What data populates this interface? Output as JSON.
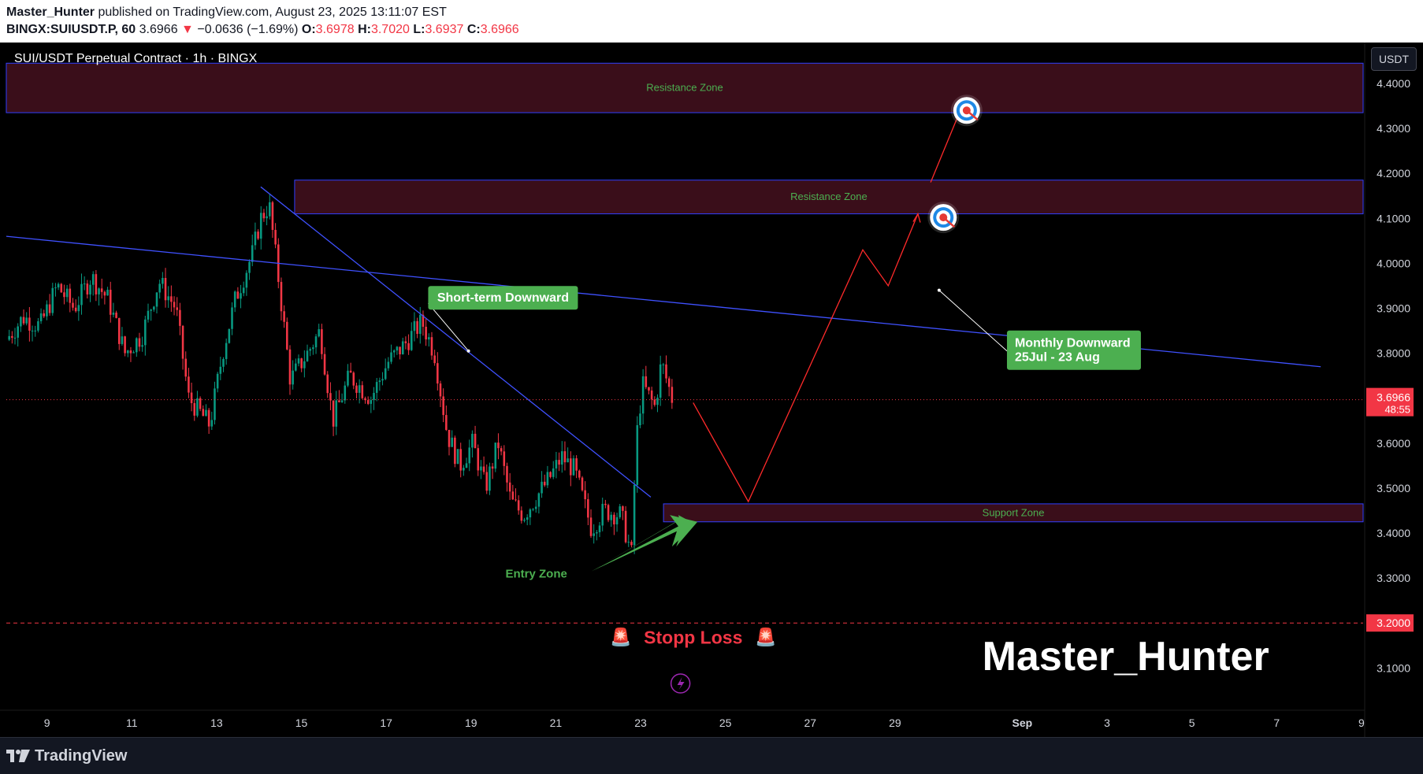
{
  "header": {
    "author": "Master_Hunter",
    "published_text": " published on TradingView.com, August 23, 2025 13:11:07 EST",
    "symbol": "BINGX:SUIUSDT.P, 60",
    "last": "3.6966",
    "change": "−0.0636 (−1.69%)",
    "open_label": "O:",
    "open": "3.6978",
    "high_label": "H:",
    "high": "3.7020",
    "low_label": "L:",
    "low": "3.6937",
    "close_label": "C:",
    "close": "3.6966"
  },
  "chart_title": "SUI/USDT Perpetual Contract · 1h · BINGX",
  "currency_button": "USDT",
  "footer": {
    "brand": "TradingView"
  },
  "colors": {
    "background": "#000000",
    "zone_fill": "#3a0e1a",
    "zone_border": "#2f3fff",
    "up_candle": "#089981",
    "down_candle": "#f23645",
    "trendline": "#3f51ff",
    "projection": "#ff2a2a",
    "label_green": "#4caf50",
    "zone_text": "#4caf50"
  },
  "chart_data": {
    "type": "candlestick",
    "x_axis": {
      "tick_labels": [
        "9",
        "11",
        "13",
        "15",
        "17",
        "19",
        "21",
        "23",
        "25",
        "27",
        "29",
        "Sep",
        "3",
        "5",
        "7",
        "9"
      ]
    },
    "y_axis": {
      "ylim": [
        3.02,
        4.47
      ],
      "tick_labels": [
        "4.4000",
        "4.3000",
        "4.2000",
        "4.1000",
        "4.0000",
        "3.9000",
        "3.8000",
        "3.7000",
        "3.6000",
        "3.5000",
        "3.4000",
        "3.3000",
        "3.2000",
        "3.1000"
      ],
      "tick_values": [
        4.4,
        4.3,
        4.2,
        4.1,
        4.0,
        3.9,
        3.8,
        3.7,
        3.6,
        3.5,
        3.4,
        3.3,
        3.2,
        3.1
      ]
    },
    "last_price": {
      "value": 3.6966,
      "label": "3.6966",
      "countdown": "48:55"
    },
    "stop_loss_price": {
      "value": 3.2,
      "label": "3.2000"
    },
    "price_path": [
      {
        "day": 8.0,
        "price": 3.83
      },
      {
        "day": 8.4,
        "price": 3.88
      },
      {
        "day": 8.8,
        "price": 3.86
      },
      {
        "day": 9.2,
        "price": 3.95
      },
      {
        "day": 9.6,
        "price": 3.9
      },
      {
        "day": 10.0,
        "price": 3.97
      },
      {
        "day": 10.4,
        "price": 3.92
      },
      {
        "day": 10.8,
        "price": 3.8
      },
      {
        "day": 11.2,
        "price": 3.84
      },
      {
        "day": 11.6,
        "price": 3.96
      },
      {
        "day": 12.0,
        "price": 3.9
      },
      {
        "day": 12.3,
        "price": 3.7
      },
      {
        "day": 12.8,
        "price": 3.64
      },
      {
        "day": 13.1,
        "price": 3.8
      },
      {
        "day": 13.4,
        "price": 3.92
      },
      {
        "day": 13.8,
        "price": 4.02
      },
      {
        "day": 14.0,
        "price": 4.1
      },
      {
        "day": 14.2,
        "price": 4.13
      },
      {
        "day": 14.4,
        "price": 3.98
      },
      {
        "day": 14.7,
        "price": 3.74
      },
      {
        "day": 15.1,
        "price": 3.8
      },
      {
        "day": 15.4,
        "price": 3.85
      },
      {
        "day": 15.7,
        "price": 3.65
      },
      {
        "day": 16.1,
        "price": 3.75
      },
      {
        "day": 16.6,
        "price": 3.7
      },
      {
        "day": 17.0,
        "price": 3.78
      },
      {
        "day": 17.4,
        "price": 3.82
      },
      {
        "day": 17.8,
        "price": 3.87
      },
      {
        "day": 18.1,
        "price": 3.8
      },
      {
        "day": 18.4,
        "price": 3.62
      },
      {
        "day": 18.7,
        "price": 3.55
      },
      {
        "day": 19.0,
        "price": 3.6
      },
      {
        "day": 19.3,
        "price": 3.5
      },
      {
        "day": 19.6,
        "price": 3.6
      },
      {
        "day": 19.9,
        "price": 3.47
      },
      {
        "day": 20.2,
        "price": 3.44
      },
      {
        "day": 20.5,
        "price": 3.48
      },
      {
        "day": 20.8,
        "price": 3.52
      },
      {
        "day": 21.1,
        "price": 3.57
      },
      {
        "day": 21.4,
        "price": 3.54
      },
      {
        "day": 21.8,
        "price": 3.41
      },
      {
        "day": 22.1,
        "price": 3.45
      },
      {
        "day": 22.5,
        "price": 3.44
      },
      {
        "day": 22.75,
        "price": 3.35
      },
      {
        "day": 22.85,
        "price": 3.6
      },
      {
        "day": 23.0,
        "price": 3.73
      },
      {
        "day": 23.3,
        "price": 3.68
      },
      {
        "day": 23.45,
        "price": 3.78
      },
      {
        "day": 23.7,
        "price": 3.7
      }
    ],
    "zones": [
      {
        "label": "Resistance Zone",
        "top": 4.445,
        "bottom": 4.335,
        "start_day": 8.0
      },
      {
        "label": "Resistance Zone",
        "top": 4.185,
        "bottom": 4.11,
        "start_day": 14.8
      },
      {
        "label": "Support Zone",
        "top": 3.465,
        "bottom": 3.425,
        "start_day": 23.5
      }
    ],
    "trendlines": [
      {
        "name": "Monthly Downward",
        "from": {
          "day": 8.0,
          "price": 4.06
        },
        "to": {
          "day": 39.0,
          "price": 3.77
        }
      },
      {
        "name": "Short-term Downward",
        "from": {
          "day": 14.0,
          "price": 4.17
        },
        "to": {
          "day": 23.2,
          "price": 3.48
        }
      }
    ],
    "projection": [
      {
        "day": 24.2,
        "price": 3.69
      },
      {
        "day": 25.5,
        "price": 3.47
      },
      {
        "day": 28.2,
        "price": 4.03
      },
      {
        "day": 28.8,
        "price": 3.95
      },
      {
        "day": 29.5,
        "price": 4.11
      }
    ],
    "projection2": [
      {
        "day": 29.8,
        "price": 4.18
      },
      {
        "day": 30.5,
        "price": 4.34
      }
    ],
    "annotations": {
      "short_term": "Short-term Downward",
      "monthly_line1": "Monthly Downward",
      "monthly_line2": "25Jul - 23 Aug",
      "entry_zone": "Entry Zone",
      "stop_loss": "Stopp Loss",
      "watermark": "Master_Hunter"
    }
  }
}
